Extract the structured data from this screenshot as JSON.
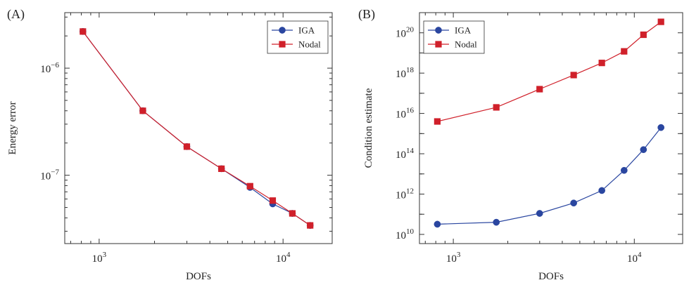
{
  "chart_data": [
    {
      "panel_label": "(A)",
      "type": "line",
      "xlabel": "DOFs",
      "ylabel": "Energy error",
      "xscale": "log",
      "yscale": "log",
      "xlim": [
        650,
        18500
      ],
      "ylim": [
        2.3e-08,
        3.3e-06
      ],
      "x_ticks": [
        {
          "value": 1000,
          "base": "10",
          "exp": "3"
        },
        {
          "value": 10000,
          "base": "10",
          "exp": "4"
        }
      ],
      "y_ticks": [
        {
          "value": 1e-07,
          "base": "10",
          "exp": "−7"
        },
        {
          "value": 1e-06,
          "base": "10",
          "exp": "−6"
        }
      ],
      "legend_position": "top-right",
      "grid": false,
      "series": [
        {
          "name": "IGA",
          "marker": "circle",
          "color": "#2a46a0",
          "x": [
            816,
            1728,
            2998,
            4624,
            6616,
            8784,
            11236,
            14040
          ],
          "y": [
            2.2e-06,
            4e-07,
            1.85e-07,
            1.15e-07,
            7.7e-08,
            5.4e-08,
            4.4e-08,
            3.4e-08
          ]
        },
        {
          "name": "Nodal",
          "marker": "square",
          "color": "#d0202a",
          "x": [
            816,
            1728,
            2998,
            4624,
            6616,
            8784,
            11236,
            14040
          ],
          "y": [
            2.2e-06,
            4e-07,
            1.85e-07,
            1.15e-07,
            7.9e-08,
            5.8e-08,
            4.4e-08,
            3.4e-08
          ]
        }
      ]
    },
    {
      "panel_label": "(B)",
      "type": "line",
      "xlabel": "DOFs",
      "ylabel": "Condition estimate",
      "xscale": "log",
      "yscale": "log",
      "xlim": [
        650,
        18500
      ],
      "ylim": [
        3500000000.0,
        1e+21
      ],
      "x_ticks": [
        {
          "value": 1000,
          "base": "10",
          "exp": "3"
        },
        {
          "value": 10000,
          "base": "10",
          "exp": "4"
        }
      ],
      "y_ticks": [
        {
          "value": 10000000000.0,
          "base": "10",
          "exp": "10"
        },
        {
          "value": 1000000000000.0,
          "base": "10",
          "exp": "12"
        },
        {
          "value": 100000000000000.0,
          "base": "10",
          "exp": "14"
        },
        {
          "value": 1e+16,
          "base": "10",
          "exp": "16"
        },
        {
          "value": 1e+18,
          "base": "10",
          "exp": "18"
        },
        {
          "value": 1e+20,
          "base": "10",
          "exp": "20"
        }
      ],
      "legend_position": "top-left",
      "grid": false,
      "series": [
        {
          "name": "IGA",
          "marker": "circle",
          "color": "#2a46a0",
          "x": [
            816,
            1728,
            2998,
            4624,
            6616,
            8784,
            11236,
            14040
          ],
          "y": [
            32000000000.0,
            40000000000.0,
            110000000000.0,
            360000000000.0,
            1500000000000.0,
            15000000000000.0,
            160000000000000.0,
            2000000000000000.0
          ]
        },
        {
          "name": "Nodal",
          "marker": "square",
          "color": "#d0202a",
          "x": [
            816,
            1728,
            2998,
            4624,
            6616,
            8784,
            11236,
            14040
          ],
          "y": [
            4000000000000000.0,
            2e+16,
            1.6e+17,
            8e+17,
            3.2e+18,
            1.2e+19,
            8e+19,
            3.5e+20
          ]
        }
      ]
    }
  ]
}
